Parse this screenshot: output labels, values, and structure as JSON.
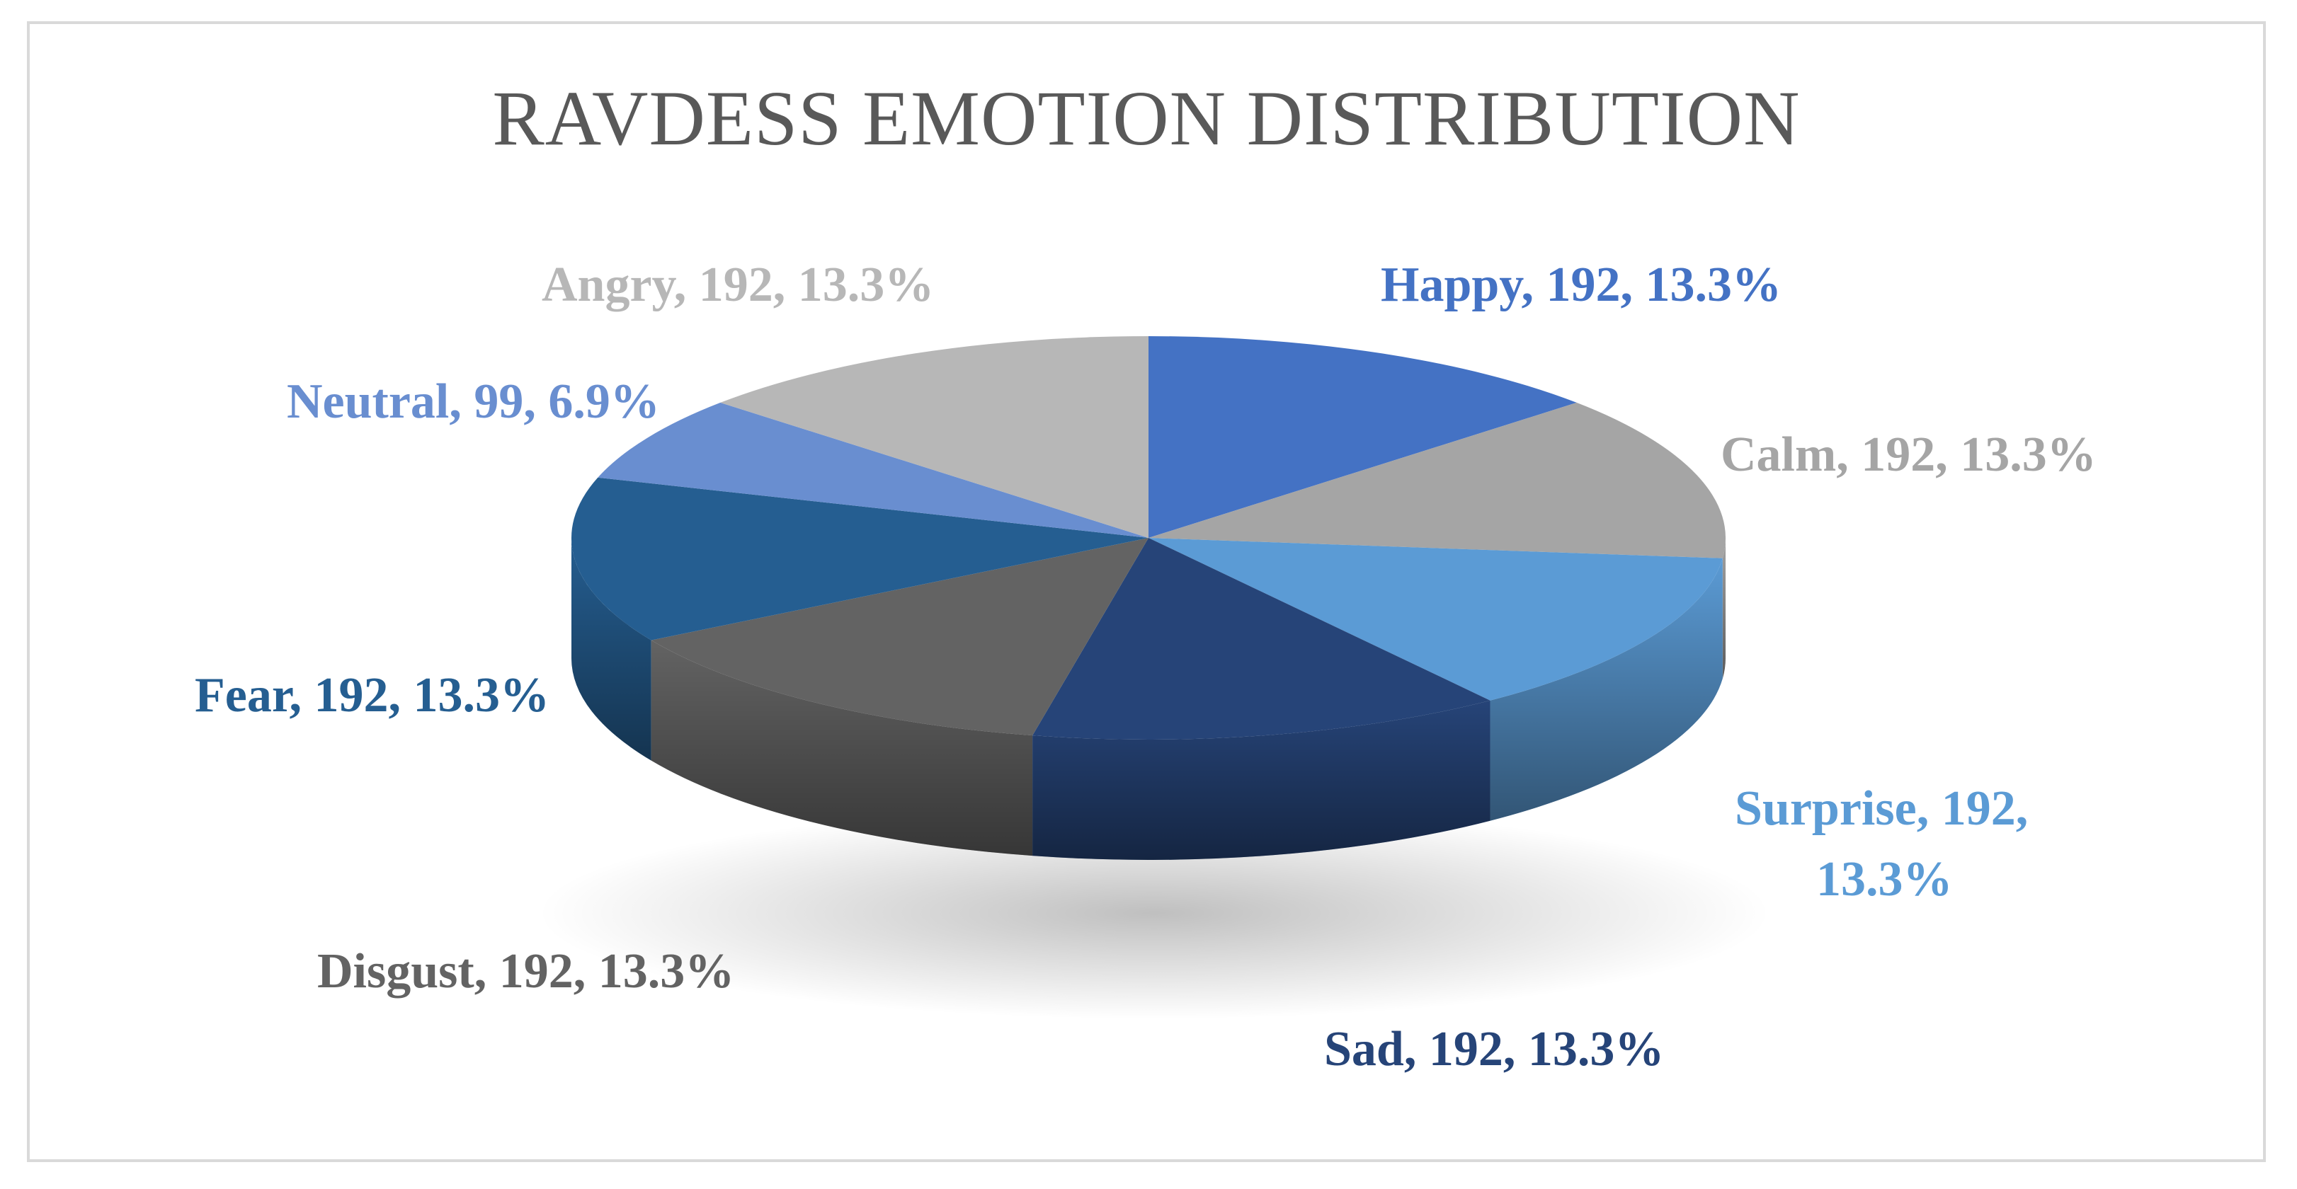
{
  "chart_data": {
    "type": "pie",
    "title": "RAVDESS EMOTION DISTRIBUTION",
    "slices": [
      {
        "name": "Happy",
        "value": 192,
        "percent": "13.3%",
        "color": "#4472c4",
        "label_color": "#4472c4",
        "label": "Happy, 192, 13.3%"
      },
      {
        "name": "Calm",
        "value": 192,
        "percent": "13.3%",
        "color": "#a5a5a5",
        "label_color": "#a5a5a5",
        "label": "Calm, 192, 13.3%"
      },
      {
        "name": "Surprise",
        "value": 192,
        "percent": "13.3%",
        "color": "#5b9bd5",
        "label_color": "#5b9bd5",
        "label": "Surprise, 192, 13.3%"
      },
      {
        "name": "Sad",
        "value": 192,
        "percent": "13.3%",
        "color": "#264478",
        "label_color": "#264478",
        "label": "Sad, 192, 13.3%"
      },
      {
        "name": "Disgust",
        "value": 192,
        "percent": "13.3%",
        "color": "#636363",
        "label_color": "#636363",
        "label": "Disgust, 192, 13.3%"
      },
      {
        "name": "Fear",
        "value": 192,
        "percent": "13.3%",
        "color": "#255e91",
        "label_color": "#255e91",
        "label": "Fear, 192, 13.3%"
      },
      {
        "name": "Neutral",
        "value": 99,
        "percent": "6.9%",
        "color": "#698ed0",
        "label_color": "#698ed0",
        "label": "Neutral, 99, 6.9%"
      },
      {
        "name": "Angry",
        "value": 192,
        "percent": "13.3%",
        "color": "#b7b7b7",
        "label_color": "#b7b7b7",
        "label": "Angry, 192, 13.3%"
      }
    ],
    "style": "3d-pie",
    "start": "top, clockwise"
  }
}
